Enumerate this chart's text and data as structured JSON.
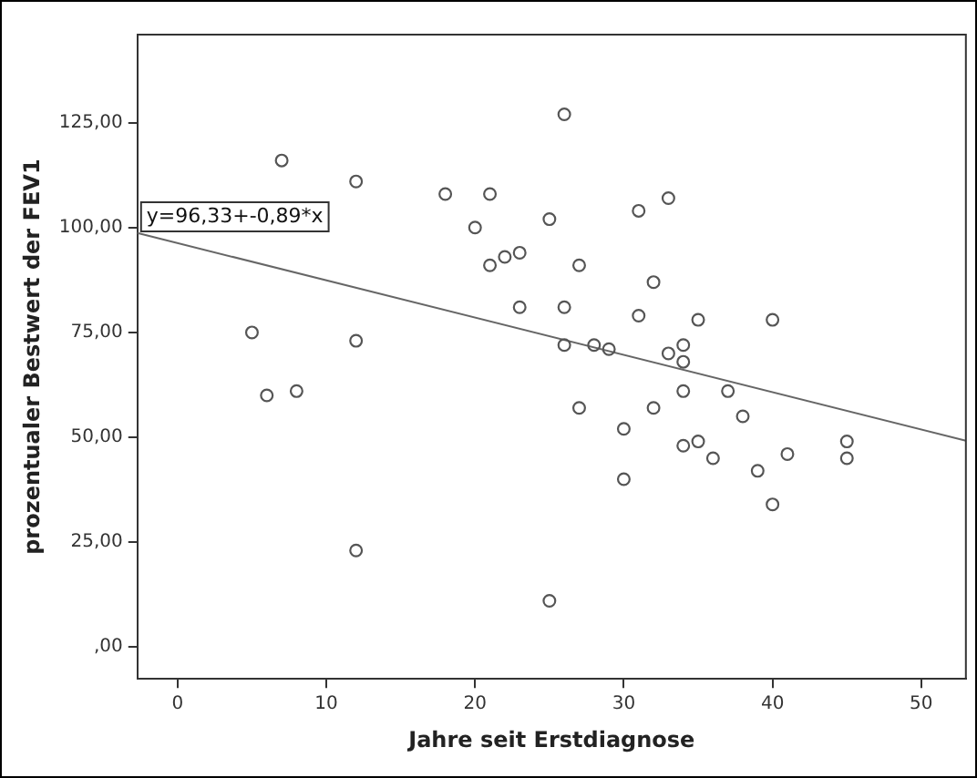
{
  "chart_data": {
    "type": "scatter",
    "xlabel": "Jahre seit Erstdiagnose",
    "ylabel": "prozentualer Bestwert der FEV1",
    "annotations": [
      "y=96,33+-0,89*x"
    ],
    "xlim": [
      -2.7,
      53
    ],
    "xticks": [
      0,
      10,
      20,
      30,
      40,
      50
    ],
    "ylim": [
      -7.6,
      146
    ],
    "yticks": [
      {
        "value": 0,
        "label": ",00"
      },
      {
        "value": 25,
        "label": "25,00"
      },
      {
        "value": 50,
        "label": "50,00"
      },
      {
        "value": 75,
        "label": "75,00"
      },
      {
        "value": 100,
        "label": "100,00"
      },
      {
        "value": 125,
        "label": "125,00"
      }
    ],
    "grid": false,
    "legend": false,
    "series": [
      {
        "color": "#555555",
        "marker": "circle",
        "x": [
          5,
          6,
          7,
          8,
          12,
          12,
          12,
          18,
          20,
          21,
          21,
          22,
          23,
          23,
          25,
          25,
          26,
          26,
          26,
          27,
          27,
          28,
          29,
          30,
          30,
          31,
          31,
          32,
          32,
          33,
          33,
          34,
          34,
          34,
          34,
          35,
          35,
          36,
          37,
          38,
          39,
          40,
          40,
          41,
          45,
          45
        ],
        "values": [
          75,
          60,
          116,
          61,
          111,
          73,
          23,
          108,
          100,
          108,
          91,
          93,
          94,
          81,
          102,
          11,
          127,
          81,
          72,
          91,
          57,
          72,
          71,
          52,
          40,
          104,
          79,
          87,
          57,
          107,
          70,
          72,
          68,
          61,
          48,
          78,
          49,
          45,
          61,
          55,
          42,
          78,
          34,
          46,
          49,
          45
        ]
      },
      {
        "type": "line",
        "color": "#666666",
        "marker": "none",
        "line_style": "solid",
        "x": [
          -2.7,
          53
        ],
        "values": [
          98.7,
          49.2
        ]
      }
    ]
  }
}
